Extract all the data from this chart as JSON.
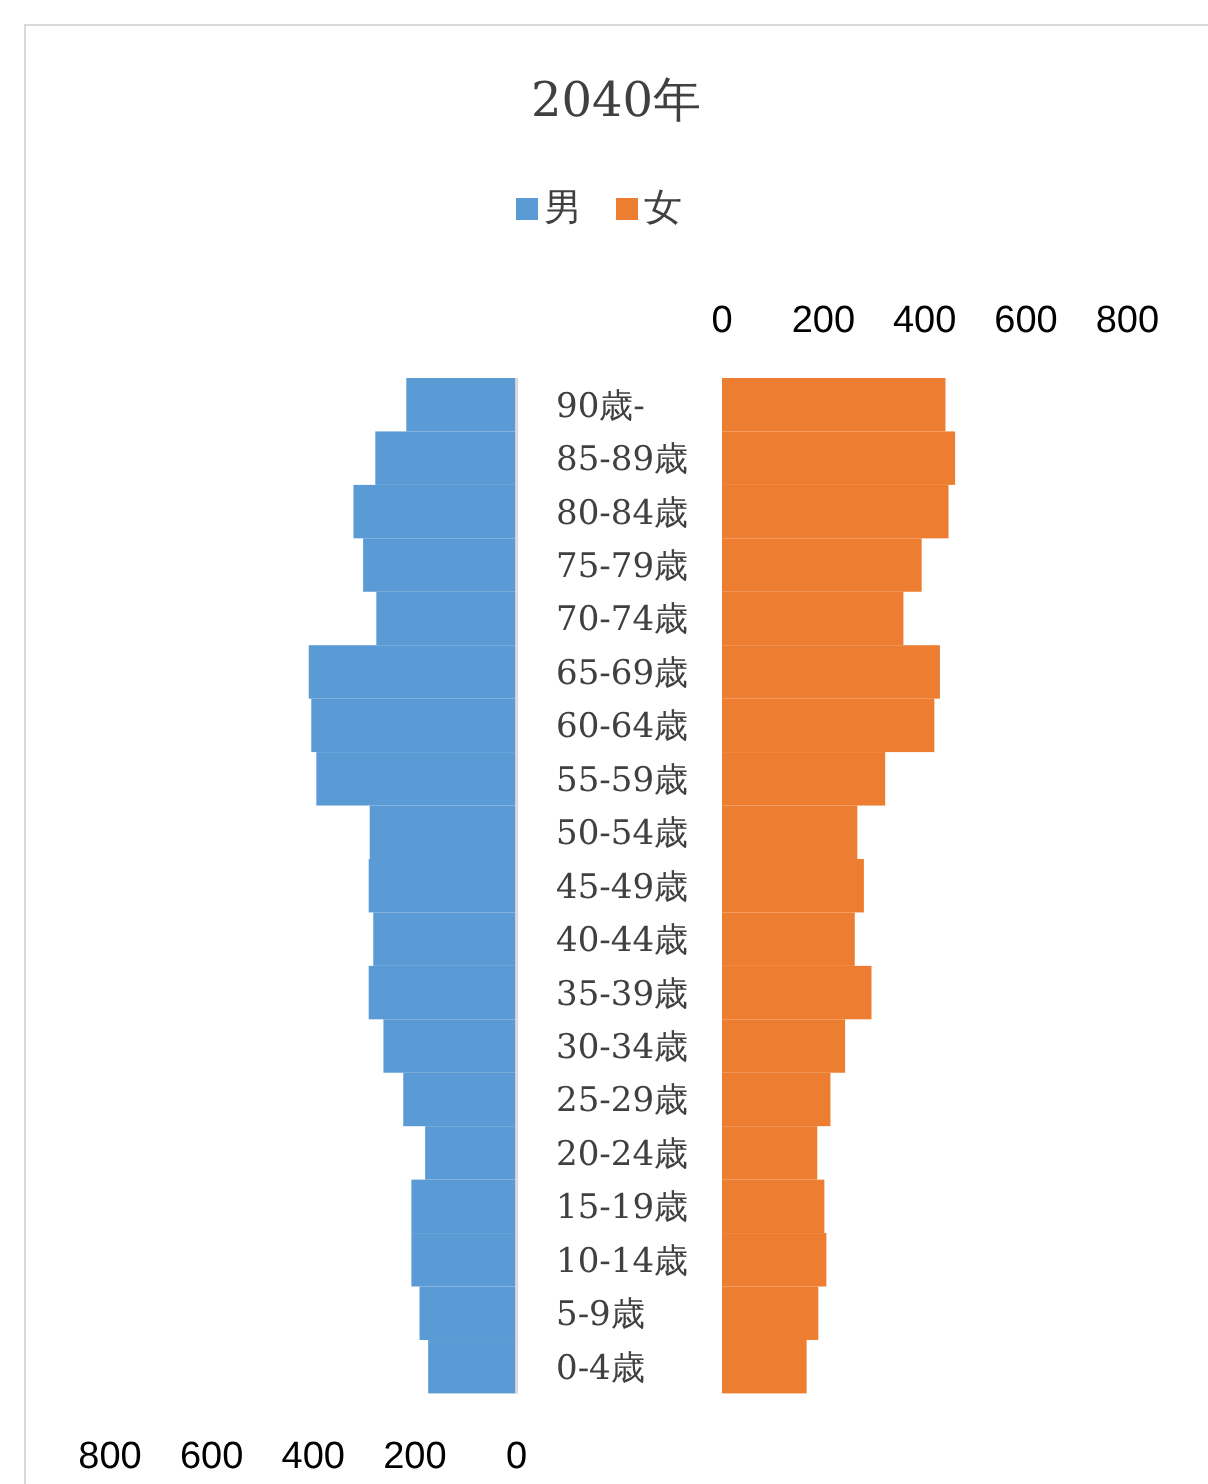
{
  "chart_data": [
    {
      "type": "bar",
      "orientation": "horizontal",
      "title": "2040年",
      "categories": [
        null,
        null,
        null,
        null,
        null,
        null,
        null,
        null,
        null,
        null,
        null,
        null,
        null,
        null,
        null,
        null,
        null,
        null,
        null
      ],
      "series": [
        {
          "name": "男",
          "color": "#5b9bd5",
          "values": [
            217,
            278,
            321,
            302,
            276,
            409,
            404,
            394,
            289,
            291,
            282,
            291,
            262,
            223,
            180,
            207,
            207,
            191,
            174
          ]
        }
      ],
      "xlim": [
        800,
        0
      ],
      "xticks": [
        800,
        600,
        400,
        200,
        0
      ],
      "tick_labels": "x",
      "legend": "top"
    },
    {
      "type": "bar",
      "orientation": "horizontal",
      "categories": [
        "90歳-",
        "85-89歳",
        "80-84歳",
        "75-79歳",
        "70-74歳",
        "65-69歳",
        "60-64歳",
        "55-59歳",
        "50-54歳",
        "45-49歳",
        "40-44歳",
        "35-39歳",
        "30-34歳",
        "25-29歳",
        "20-24歳",
        "15-19歳",
        "10-14歳",
        "5-9歳",
        "0-4歳"
      ],
      "series": [
        {
          "name": "女",
          "color": "#ed7d31",
          "values": [
            441,
            460,
            447,
            394,
            358,
            430,
            419,
            322,
            267,
            280,
            262,
            295,
            243,
            214,
            188,
            202,
            206,
            190,
            167
          ]
        }
      ],
      "xlim": [
        0,
        800
      ],
      "xticks": [
        0,
        200,
        400,
        600,
        800
      ],
      "legend": "top"
    }
  ]
}
